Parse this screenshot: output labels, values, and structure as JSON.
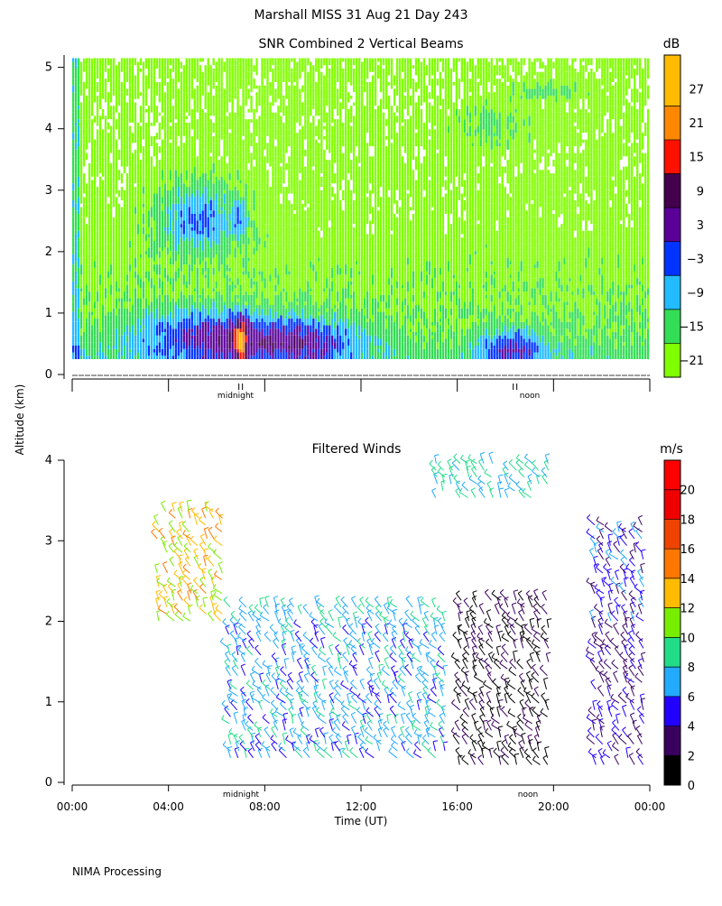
{
  "header": {
    "title": "Marshall MISS   31 Aug 21 Day 243"
  },
  "footer": {
    "credit": "NIMA Processing"
  },
  "shared_axis": {
    "ylabel": "Altitude (km)",
    "xlabel": "Time (UT)"
  },
  "colors": {
    "snr_scale": [
      "#80ff00",
      "#33dd55",
      "#22bbff",
      "#0033ff",
      "#5a0099",
      "#44004c",
      "#ff1100",
      "#ff8800",
      "#ffbb00"
    ],
    "wind_scale": [
      "#000000",
      "#3a0060",
      "#2200ff",
      "#22aaff",
      "#22dd88",
      "#77ee00",
      "#ffbb00",
      "#ff7700",
      "#ee4400",
      "#ee0000",
      "#ff0000"
    ]
  },
  "chart_data": [
    {
      "type": "heatmap",
      "title": "SNR Combined 2 Vertical Beams",
      "ylabel": "Altitude (km)",
      "ylim": [
        0,
        5.2
      ],
      "yticks": [
        "0",
        "1",
        "2",
        "3",
        "4",
        "5"
      ],
      "xlim": [
        0,
        24
      ],
      "x_markers": [
        "midnight",
        "noon"
      ],
      "colorbar": {
        "unit": "dB",
        "range": [
          -24,
          33
        ],
        "tick_labels": [
          "27",
          "21",
          "15",
          "9",
          "3",
          "−3",
          "−9",
          "−15",
          "−21"
        ],
        "bands": [
          -24,
          -18,
          -12,
          -6,
          0,
          6,
          12,
          18,
          24,
          33
        ]
      },
      "grid": false,
      "features": [
        {
          "desc": "strong echo layer near surface",
          "x_range_hours": [
            2.5,
            12.0
          ],
          "altitude_km": [
            0.25,
            1.0
          ],
          "snr_db": [
            -6,
            6
          ]
        },
        {
          "desc": "elevated echo",
          "x_range_hours": [
            3.5,
            7.5
          ],
          "altitude_km": [
            1.8,
            3.2
          ],
          "snr_db": [
            -6,
            9
          ]
        },
        {
          "desc": "peak echo",
          "x_hours": 7.0,
          "altitude_km": [
            0.3,
            0.9
          ],
          "snr_db": 21
        },
        {
          "desc": "afternoon surface echo",
          "x_range_hours": [
            17.0,
            19.8
          ],
          "altitude_km": [
            0.25,
            0.7
          ],
          "snr_db": [
            -3,
            9
          ]
        },
        {
          "desc": "upper layer",
          "x_range_hours": [
            18.5,
            21.0
          ],
          "altitude_km": [
            4.4,
            4.7
          ],
          "snr_db": [
            -9,
            -3
          ]
        }
      ]
    },
    {
      "type": "scatter",
      "title": "Filtered Winds",
      "xlabel": "Time (UT)",
      "ylabel": "Altitude (km)",
      "ylim": [
        0,
        4.1
      ],
      "yticks": [
        "0",
        "1",
        "2",
        "3",
        "4"
      ],
      "xlim": [
        0,
        24
      ],
      "xticks": [
        "00:00",
        "04:00",
        "08:00",
        "12:00",
        "16:00",
        "20:00",
        "00:00"
      ],
      "x_markers": [
        "midnight",
        "noon"
      ],
      "colorbar": {
        "unit": "m/s",
        "range": [
          0,
          22
        ],
        "tick_labels": [
          "20",
          "18",
          "16",
          "14",
          "12",
          "10",
          "8",
          "6",
          "4",
          "2",
          "0"
        ]
      },
      "grid": false,
      "wind_regimes": [
        {
          "x_range_hours": [
            3.5,
            6.5
          ],
          "altitude_km": [
            2.0,
            3.4
          ],
          "speed_ms": [
            10,
            14
          ]
        },
        {
          "x_range_hours": [
            6.5,
            15.5
          ],
          "altitude_km": [
            0.3,
            2.2
          ],
          "speed_ms": [
            5,
            9
          ]
        },
        {
          "x_range_hours": [
            15.0,
            20.0
          ],
          "altitude_km": [
            3.5,
            4.0
          ],
          "speed_ms": [
            6,
            8
          ]
        },
        {
          "x_range_hours": [
            16.0,
            20.0
          ],
          "altitude_km": [
            0.2,
            2.3
          ],
          "speed_ms": [
            0,
            3
          ]
        },
        {
          "x_range_hours": [
            21.5,
            24.0
          ],
          "altitude_km": [
            0.2,
            3.2
          ],
          "speed_ms": [
            2,
            6
          ]
        }
      ]
    }
  ]
}
